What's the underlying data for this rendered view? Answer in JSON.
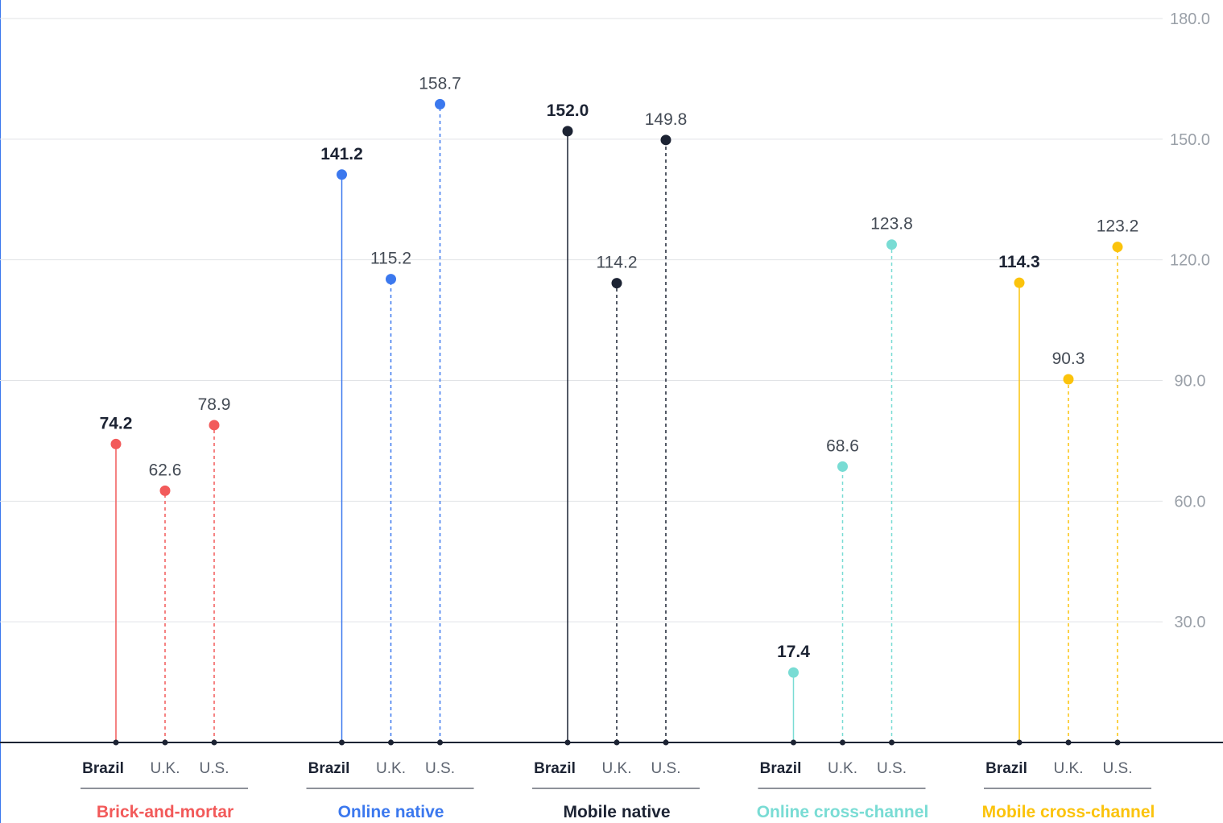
{
  "chart_data": {
    "type": "lollipop",
    "y_ticks": [
      "30.0",
      "60.0",
      "90.0",
      "120.0",
      "150.0",
      "180.0"
    ],
    "ylim": [
      0,
      180
    ],
    "grid": true,
    "groups": [
      {
        "name": "Brick-and-mortar",
        "color": "#f25a5a",
        "points": [
          {
            "category": "Brazil",
            "value": 74.2,
            "label": "74.2"
          },
          {
            "category": "U.K.",
            "value": 62.6,
            "label": "62.6"
          },
          {
            "category": "U.S.",
            "value": 78.9,
            "label": "78.9"
          }
        ]
      },
      {
        "name": "Online native",
        "color": "#3b78ee",
        "points": [
          {
            "category": "Brazil",
            "value": 141.2,
            "label": "141.2"
          },
          {
            "category": "U.K.",
            "value": 115.2,
            "label": "115.2"
          },
          {
            "category": "U.S.",
            "value": 158.7,
            "label": "158.7"
          }
        ]
      },
      {
        "name": "Mobile native",
        "color": "#1c2333",
        "points": [
          {
            "category": "Brazil",
            "value": 152.0,
            "label": "152.0"
          },
          {
            "category": "U.K.",
            "value": 114.2,
            "label": "114.2"
          },
          {
            "category": "U.S.",
            "value": 149.8,
            "label": "149.8"
          }
        ]
      },
      {
        "name": "Online cross-channel",
        "color": "#79dcd4",
        "points": [
          {
            "category": "Brazil",
            "value": 17.4,
            "label": "17.4"
          },
          {
            "category": "U.K.",
            "value": 68.6,
            "label": "68.6"
          },
          {
            "category": "U.S.",
            "value": 123.8,
            "label": "123.8"
          }
        ]
      },
      {
        "name": "Mobile cross-channel",
        "color": "#fbc30c",
        "points": [
          {
            "category": "Brazil",
            "value": 114.3,
            "label": "114.3"
          },
          {
            "category": "U.K.",
            "value": 90.3,
            "label": "90.3"
          },
          {
            "category": "U.S.",
            "value": 123.2,
            "label": "123.2"
          }
        ]
      }
    ],
    "highlight_category": "Brazil",
    "colors": {
      "grid": "#e1e3e6",
      "baseline": "#1c2333",
      "divider": "#1c2333"
    }
  }
}
